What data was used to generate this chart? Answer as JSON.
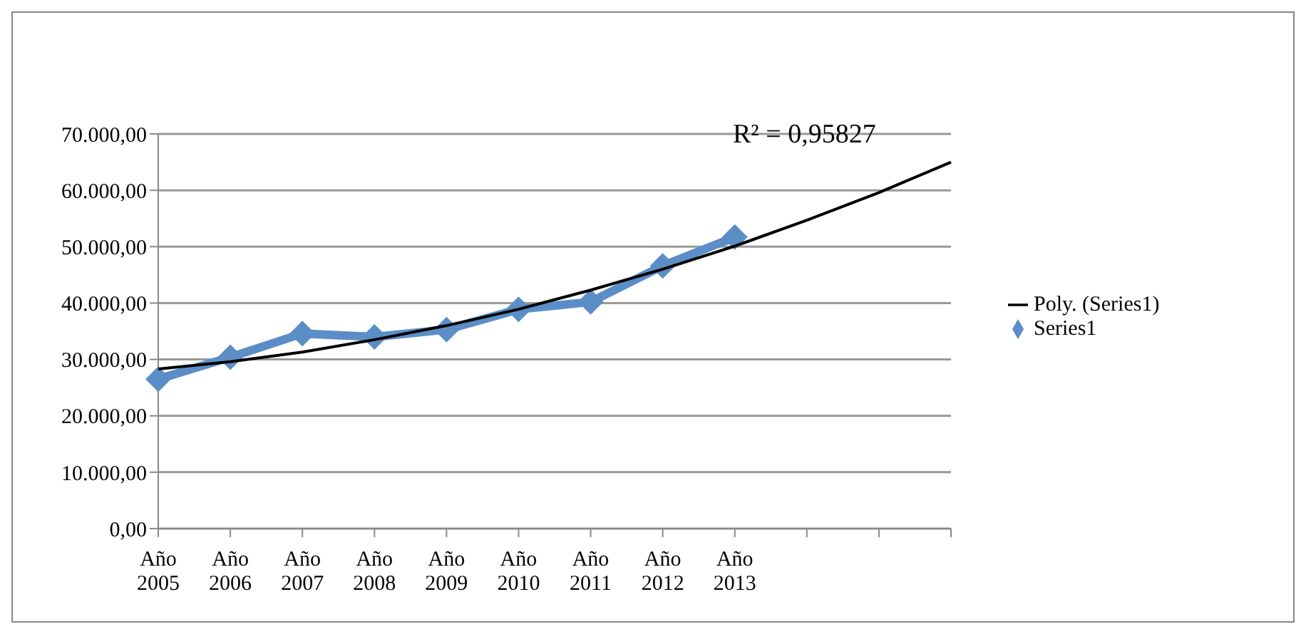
{
  "chart_data": {
    "type": "line",
    "categories": [
      "Año 2005",
      "Año 2006",
      "Año 2007",
      "Año 2008",
      "Año 2009",
      "Año 2010",
      "Año 2011",
      "Año 2012",
      "Año 2013",
      null,
      null,
      null
    ],
    "series": [
      {
        "name": "Series1",
        "color": "#5b8ec6",
        "marker": "diamond",
        "values": [
          26500,
          30400,
          34600,
          34000,
          35300,
          38900,
          40200,
          46600,
          51700,
          null,
          null,
          null
        ]
      },
      {
        "name": "Poly. (Series1)",
        "color": "#000000",
        "marker": "none",
        "values": [
          28300,
          29600,
          31300,
          33500,
          36000,
          38900,
          42300,
          46000,
          50100,
          54700,
          59600,
          65000
        ]
      }
    ],
    "ylim": [
      0,
      70000
    ],
    "yticks": [
      {
        "value": 0,
        "label": "0,00"
      },
      {
        "value": 10000,
        "label": "10.000,00"
      },
      {
        "value": 20000,
        "label": "20.000,00"
      },
      {
        "value": 30000,
        "label": "30.000,00"
      },
      {
        "value": 40000,
        "label": "40.000,00"
      },
      {
        "value": 50000,
        "label": "50.000,00"
      },
      {
        "value": 60000,
        "label": "60.000,00"
      },
      {
        "value": 70000,
        "label": "70.000,00"
      }
    ],
    "grid": "y",
    "legend": "right",
    "annotations": [
      "R² = 0,95827"
    ]
  }
}
